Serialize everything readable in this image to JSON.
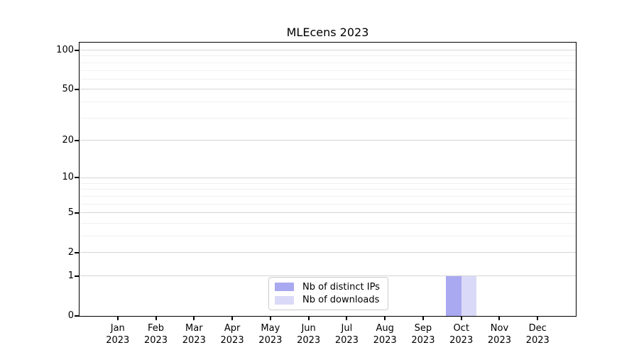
{
  "chart_data": {
    "type": "bar",
    "title": "MLEcens 2023",
    "categories": [
      "Jan 2023",
      "Feb 2023",
      "Mar 2023",
      "Apr 2023",
      "May 2023",
      "Jun 2023",
      "Jul 2023",
      "Aug 2023",
      "Sep 2023",
      "Oct 2023",
      "Nov 2023",
      "Dec 2023"
    ],
    "series": [
      {
        "name": "Nb of distinct IPs",
        "color": "#a9a9f1",
        "values": [
          0,
          0,
          0,
          0,
          0,
          0,
          0,
          0,
          0,
          1,
          0,
          0
        ]
      },
      {
        "name": "Nb of downloads",
        "color": "#dadaf8",
        "values": [
          0,
          0,
          0,
          0,
          0,
          0,
          0,
          0,
          0,
          1,
          0,
          0
        ]
      }
    ],
    "xlabel": "",
    "ylabel": "",
    "yscale": "log1p",
    "ylim": [
      0,
      114
    ],
    "y_ticks": [
      0,
      1,
      2,
      5,
      10,
      20,
      50,
      100
    ],
    "y_minor_gridlines": [
      3,
      4,
      6,
      7,
      8,
      9,
      30,
      40,
      60,
      70,
      80,
      90
    ],
    "grid": "horizontal",
    "legend_position": "lower center"
  },
  "colors": {
    "background": "#ffffff",
    "axis": "#000000",
    "major_grid": "#d5d5d5",
    "minor_grid": "#f0f0f0",
    "legend_border": "#cccccc"
  }
}
